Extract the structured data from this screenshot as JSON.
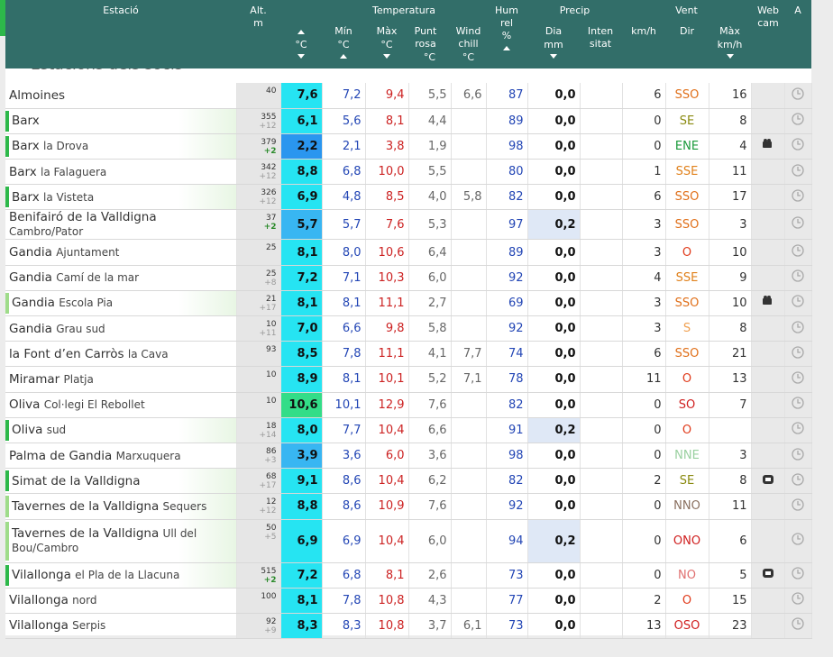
{
  "header": {
    "section_title": "Estacions dels socis",
    "columns": {
      "station": "Estació",
      "alt": "Alt.",
      "alt_unit": "m",
      "temperature": "Temperatura",
      "current_unit": "°C",
      "min": "Mín",
      "min_unit": "°C",
      "max": "Màx",
      "max_unit": "°C",
      "dew": "Punt rosa",
      "dew_unit": "°C",
      "chill": "Wind chill",
      "chill_unit": "°C",
      "hum": "Hum rel",
      "hum_unit": "%",
      "precip": "Precip",
      "precip_day": "Dia",
      "precip_unit": "mm",
      "intensity": "Inten sitat",
      "wind": "Vent",
      "wind_unit": "km/h",
      "dir": "Dir",
      "gust": "Màx",
      "gust_unit": "km/h",
      "webcam": "Web cam",
      "a": "A"
    }
  },
  "table": {
    "rows": [
      {
        "name": "Almoines",
        "alt": "40",
        "temp": "7,6",
        "min": "7,2",
        "max": "9,4",
        "dew": "5,5",
        "chill": "6,6",
        "hum": "87",
        "precip": "0,0",
        "wind": "6",
        "dir": "SSO",
        "gust": "16"
      },
      {
        "name": "Barx",
        "alt": "355",
        "alt_delta": "+12",
        "temp": "6,1",
        "min": "5,6",
        "max": "8,1",
        "dew": "4,4",
        "hum": "89",
        "precip": "0,0",
        "wind": "0",
        "dir": "SE",
        "gust": "8"
      },
      {
        "name": "Barx",
        "sub": "la Drova",
        "alt": "379",
        "alt_delta": "+2",
        "temp": "2,2",
        "min": "2,1",
        "max": "3,8",
        "dew": "1,9",
        "hum": "98",
        "precip": "0,0",
        "wind": "0",
        "dir": "ENE",
        "gust": "4"
      },
      {
        "name": "Barx",
        "sub": "la Falaguera",
        "alt": "342",
        "alt_delta": "+12",
        "temp": "8,8",
        "min": "6,8",
        "max": "10,0",
        "dew": "5,5",
        "hum": "80",
        "precip": "0,0",
        "wind": "1",
        "dir": "SSE",
        "gust": "11"
      },
      {
        "name": "Barx",
        "sub": "la Visteta",
        "alt": "326",
        "alt_delta": "+12",
        "temp": "6,9",
        "min": "4,8",
        "max": "8,5",
        "dew": "4,0",
        "chill": "5,8",
        "hum": "82",
        "precip": "0,0",
        "wind": "6",
        "dir": "SSO",
        "gust": "17"
      },
      {
        "name": "Benifairó de la Valldigna",
        "sub": "Cambro/Pator",
        "alt": "37",
        "alt_delta": "+2",
        "temp": "5,7",
        "min": "5,7",
        "max": "7,6",
        "dew": "5,3",
        "hum": "97",
        "precip": "0,2",
        "wind": "3",
        "dir": "SSO",
        "gust": "3"
      },
      {
        "name": "Gandia",
        "sub": "Ajuntament",
        "alt": "25",
        "temp": "8,1",
        "min": "8,0",
        "max": "10,6",
        "dew": "6,4",
        "hum": "89",
        "precip": "0,0",
        "wind": "3",
        "dir": "O",
        "gust": "10"
      },
      {
        "name": "Gandia",
        "sub": "Camí de la mar",
        "alt": "25",
        "alt_delta": "+8",
        "temp": "7,2",
        "min": "7,1",
        "max": "10,3",
        "dew": "6,0",
        "hum": "92",
        "precip": "0,0",
        "wind": "4",
        "dir": "SSE",
        "gust": "9"
      },
      {
        "name": "Gandia",
        "sub": "Escola Pia",
        "alt": "21",
        "alt_delta": "+17",
        "temp": "8,1",
        "min": "8,1",
        "max": "11,1",
        "dew": "2,7",
        "hum": "69",
        "precip": "0,0",
        "wind": "3",
        "dir": "SSO",
        "gust": "10"
      },
      {
        "name": "Gandia",
        "sub": "Grau sud",
        "alt": "10",
        "alt_delta": "+11",
        "temp": "7,0",
        "min": "6,6",
        "max": "9,8",
        "dew": "5,8",
        "hum": "92",
        "precip": "0,0",
        "wind": "3",
        "dir": "S",
        "gust": "8"
      },
      {
        "name": "la Font d’en Carròs",
        "sub": "la Cava",
        "alt": "93",
        "temp": "8,5",
        "min": "7,8",
        "max": "11,1",
        "dew": "4,1",
        "chill": "7,7",
        "hum": "74",
        "precip": "0,0",
        "wind": "6",
        "dir": "SSO",
        "gust": "21"
      },
      {
        "name": "Miramar",
        "sub": "Platja",
        "alt": "10",
        "temp": "8,9",
        "min": "8,1",
        "max": "10,1",
        "dew": "5,2",
        "chill": "7,1",
        "hum": "78",
        "precip": "0,0",
        "wind": "11",
        "dir": "O",
        "gust": "13"
      },
      {
        "name": "Oliva",
        "sub": "Col·legi El Rebollet",
        "alt": "10",
        "temp": "10,6",
        "min": "10,1",
        "max": "12,9",
        "dew": "7,6",
        "hum": "82",
        "precip": "0,0",
        "wind": "0",
        "dir": "SO",
        "gust": "7"
      },
      {
        "name": "Oliva",
        "sub": "sud",
        "alt": "18",
        "alt_delta": "+14",
        "temp": "8,0",
        "min": "7,7",
        "max": "10,4",
        "dew": "6,6",
        "hum": "91",
        "precip": "0,2",
        "wind": "0",
        "dir": "O"
      },
      {
        "name": "Palma de Gandia",
        "sub": "Marxuquera",
        "alt": "86",
        "alt_delta": "+3",
        "temp": "3,9",
        "min": "3,6",
        "max": "6,0",
        "dew": "3,6",
        "hum": "98",
        "precip": "0,0",
        "wind": "0",
        "dir": "NNE",
        "gust": "3"
      },
      {
        "name": "Simat de la Valldigna",
        "alt": "68",
        "alt_delta": "+17",
        "temp": "9,1",
        "min": "8,6",
        "max": "10,4",
        "dew": "6,2",
        "hum": "82",
        "precip": "0,0",
        "wind": "2",
        "dir": "SE",
        "gust": "8"
      },
      {
        "name": "Tavernes de la Valldigna",
        "sub": "Sequers",
        "alt": "12",
        "alt_delta": "+12",
        "temp": "8,8",
        "min": "8,6",
        "max": "10,9",
        "dew": "7,6",
        "hum": "92",
        "precip": "0,0",
        "wind": "0",
        "dir": "NNO",
        "gust": "11"
      },
      {
        "name": "Tavernes de la Valldigna",
        "sub": "Ull del Bou/Cambro",
        "alt": "50",
        "alt_delta": "+5",
        "temp": "6,9",
        "min": "6,9",
        "max": "10,4",
        "dew": "6,0",
        "hum": "94",
        "precip": "0,2",
        "wind": "0",
        "dir": "ONO",
        "gust": "6"
      },
      {
        "name": "Vilallonga",
        "sub": "el Pla de la Llacuna",
        "alt": "515",
        "alt_delta": "+2",
        "temp": "7,2",
        "min": "6,8",
        "max": "8,1",
        "dew": "2,6",
        "hum": "73",
        "precip": "0,0",
        "wind": "0",
        "dir": "NO",
        "gust": "5"
      },
      {
        "name": "Vilallonga",
        "sub": "nord",
        "alt": "100",
        "temp": "8,1",
        "min": "7,8",
        "max": "10,8",
        "dew": "4,3",
        "hum": "77",
        "precip": "0,0",
        "wind": "2",
        "dir": "O",
        "gust": "15"
      },
      {
        "name": "Vilallonga",
        "sub": "Serpis",
        "alt": "92",
        "alt_delta": "+9",
        "temp": "8,3",
        "min": "8,3",
        "max": "10,8",
        "dew": "3,7",
        "chill": "6,1",
        "hum": "73",
        "precip": "0,0",
        "wind": "13",
        "dir": "OSO",
        "gust": "23"
      }
    ]
  }
}
